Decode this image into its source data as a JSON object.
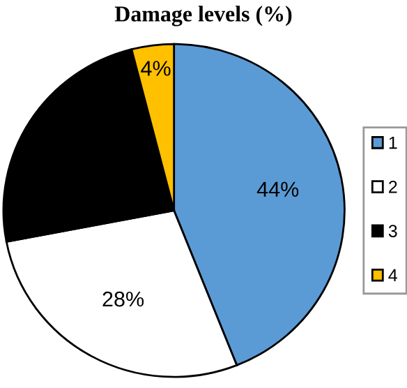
{
  "chart_data": {
    "type": "pie",
    "title": "Damage levels (%)",
    "categories": [
      "1",
      "2",
      "3",
      "4"
    ],
    "values": [
      44,
      28,
      24,
      4
    ],
    "colors": [
      "#5b9bd5",
      "#ffffff",
      "#000000",
      "#ffc000"
    ],
    "value_labels": [
      "44%",
      "28%",
      null,
      "4%"
    ],
    "legend": "right"
  }
}
